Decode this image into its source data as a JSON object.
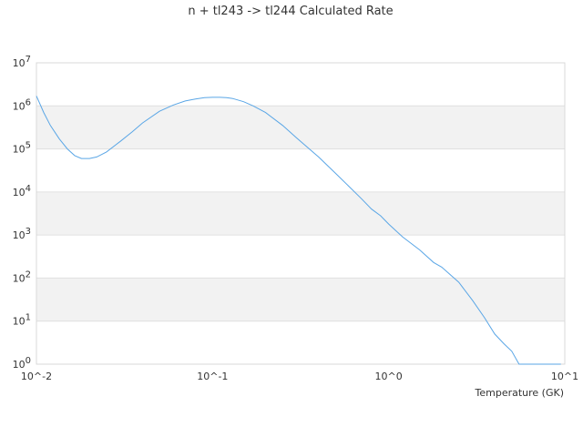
{
  "chart_data": {
    "type": "line",
    "title": "n + tl243 -> tl244 Calculated Rate",
    "xlabel": "Temperature (GK)",
    "ylabel": "",
    "xscale": "log",
    "yscale": "log",
    "xlim": [
      0.01,
      10
    ],
    "ylim": [
      1,
      10000000
    ],
    "grid": "alternating horizontal bands",
    "legend": "none",
    "line_color": "#5aa6e6",
    "band_color": "#f2f2f2",
    "x_tick_labels": [
      "10^-2",
      "10^-1",
      "10^0",
      "10^1"
    ],
    "y_tick_labels": [
      "10^0",
      "10^1",
      "10^2",
      "10^3",
      "10^4",
      "10^5",
      "10^6",
      "10^7"
    ],
    "series": [
      {
        "x": [
          0.01,
          0.011,
          0.012,
          0.0135,
          0.015,
          0.0165,
          0.018,
          0.02,
          0.022,
          0.025,
          0.03,
          0.035,
          0.04,
          0.05,
          0.06,
          0.07,
          0.08,
          0.09,
          0.1,
          0.11,
          0.12,
          0.13,
          0.15,
          0.17,
          0.2,
          0.25,
          0.3,
          0.4,
          0.5,
          0.6,
          0.7,
          0.8,
          0.9,
          1.0,
          1.2,
          1.5,
          1.8,
          2.0,
          2.5,
          3.0,
          3.5,
          4.0,
          4.5,
          5.0,
          5.5,
          6.0,
          6.5,
          7.0,
          7.5,
          8.0,
          8.5,
          9.0,
          9.5
        ],
        "y": [
          1700000,
          700000,
          350000,
          170000,
          100000,
          70000,
          60000,
          60000,
          65000,
          85000,
          150000,
          250000,
          400000,
          750000,
          1050000,
          1300000,
          1450000,
          1550000,
          1580000,
          1580000,
          1550000,
          1480000,
          1250000,
          1000000,
          700000,
          350000,
          180000,
          65000,
          27000,
          13000,
          7000,
          4000,
          2800,
          1800,
          900,
          450,
          230,
          180,
          80,
          30,
          12,
          5,
          3,
          2,
          1,
          1,
          1,
          1,
          1,
          1,
          1,
          1,
          1
        ]
      }
    ]
  }
}
